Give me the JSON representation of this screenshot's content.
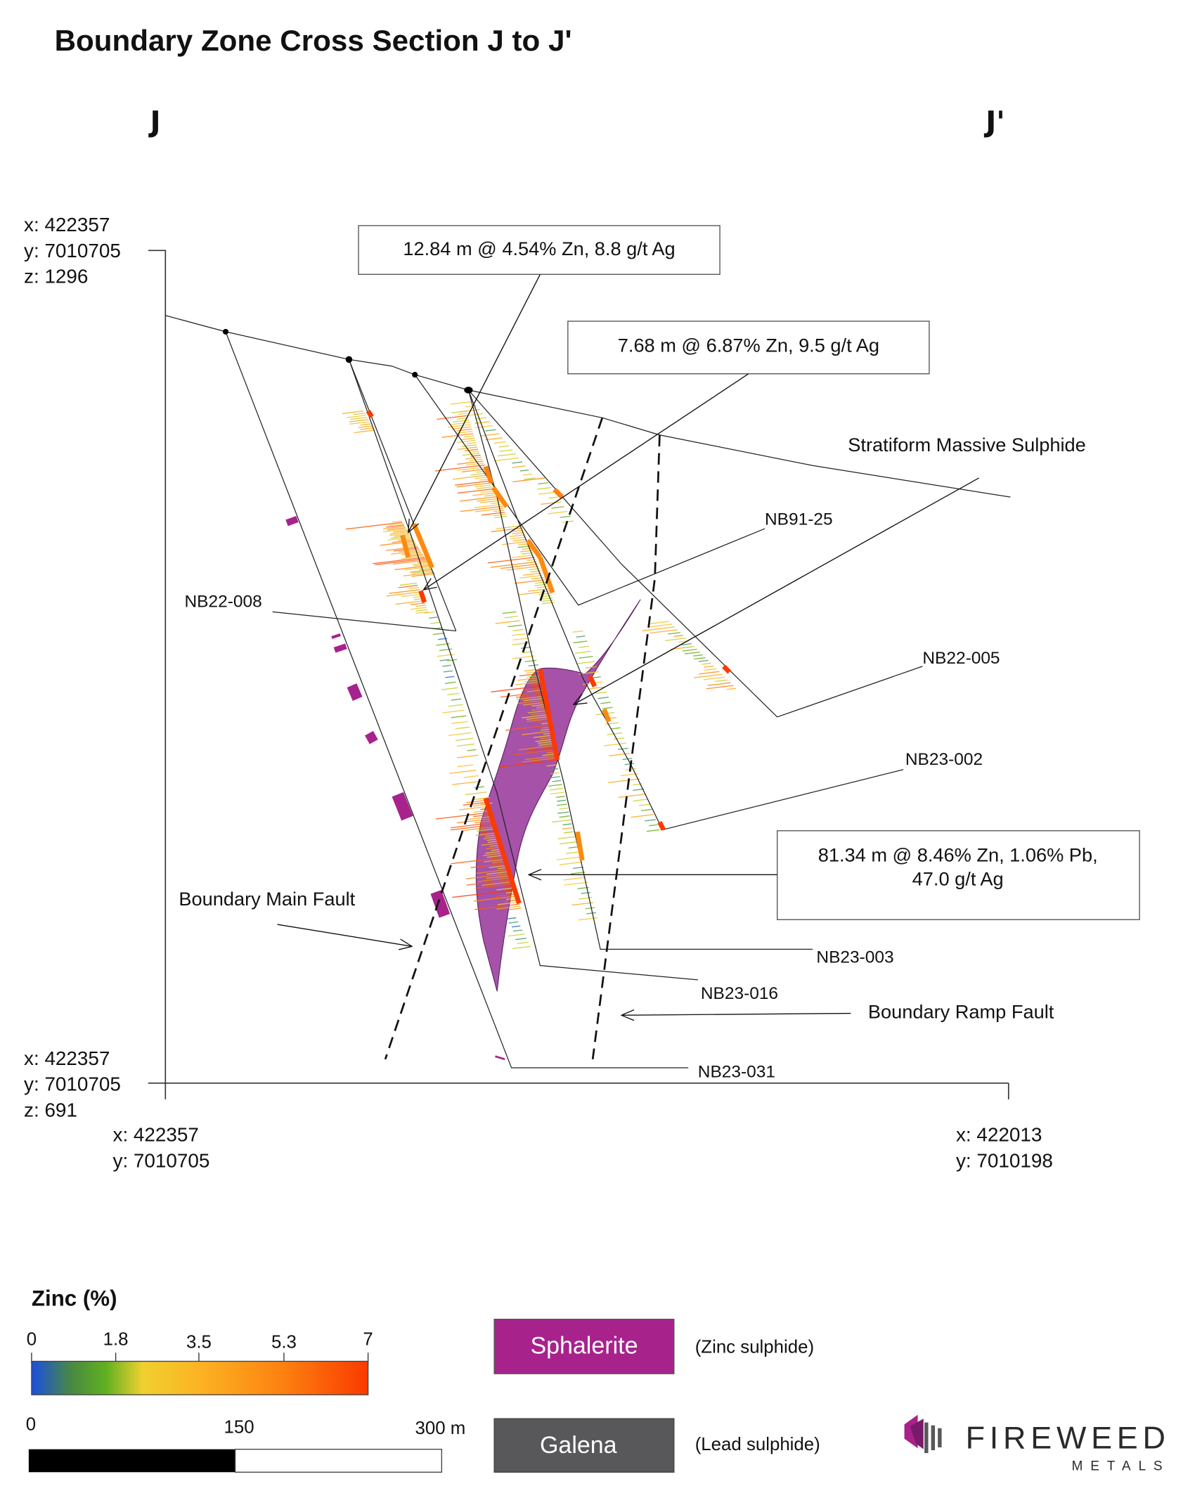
{
  "title": "Boundary Zone Cross Section J to J'",
  "section": {
    "start": "J",
    "end": "J'"
  },
  "coords": {
    "top_left": {
      "x": "x: 422357",
      "y": "y: 7010705",
      "z": "z: 1296"
    },
    "bottom_left": {
      "x": "x: 422357",
      "y": "y: 7010705",
      "z": "z: 691"
    },
    "bottom_axis_left": {
      "x": "x: 422357",
      "y": "y: 7010705"
    },
    "bottom_axis_right": {
      "x": "x: 422013",
      "y": "y: 7010198"
    }
  },
  "callouts": [
    {
      "text": "12.84 m @ 4.54% Zn, 8.8 g/t Ag"
    },
    {
      "text": "7.68 m @ 6.87% Zn, 9.5 g/t Ag"
    },
    {
      "line1": "81.34 m @ 8.46% Zn, 1.06% Pb,",
      "line2": "47.0 g/t Ag"
    }
  ],
  "drillholes": [
    "NB91-25",
    "NB22-008",
    "NB22-005",
    "NB23-002",
    "NB23-003",
    "NB23-016",
    "NB23-031"
  ],
  "features": {
    "stratiform": "Stratiform Massive Sulphide",
    "main_fault": "Boundary Main Fault",
    "ramp_fault": "Boundary Ramp Fault"
  },
  "legend": {
    "zinc_title": "Zinc (%)",
    "zinc_ticks": [
      "0",
      "1.8",
      "3.5",
      "5.3",
      "7"
    ],
    "zinc_range": [
      0,
      7
    ],
    "scale_ticks": [
      "0",
      "150",
      "300 m"
    ],
    "sphalerite": {
      "label": "Sphalerite",
      "desc": "(Zinc sulphide)",
      "color": "#a8228c"
    },
    "galena": {
      "label": "Galena",
      "desc": "(Lead sulphide)",
      "color": "#58585a"
    }
  },
  "logo": {
    "name": "FIREWEED",
    "sub": "METALS"
  }
}
